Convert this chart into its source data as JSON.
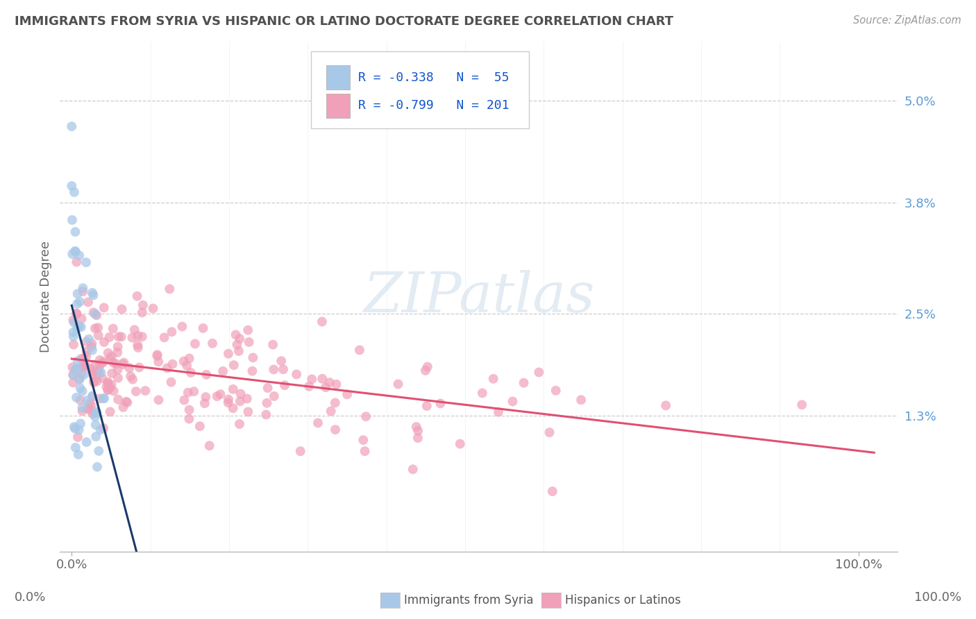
{
  "title": "IMMIGRANTS FROM SYRIA VS HISPANIC OR LATINO DOCTORATE DEGREE CORRELATION CHART",
  "source": "Source: ZipAtlas.com",
  "ylabel": "Doctorate Degree",
  "R1": -0.338,
  "N1": 55,
  "R2": -0.799,
  "N2": 201,
  "color_blue": "#A8C8E8",
  "color_blue_edge": "#A8C8E8",
  "color_pink": "#F0A0B8",
  "color_pink_edge": "#F0A0B8",
  "color_line_blue": "#1A3A6A",
  "color_line_pink": "#E05070",
  "watermark_color": "#C8D8E8",
  "background_color": "#FFFFFF",
  "grid_color": "#CCCCCC",
  "title_color": "#505050",
  "axis_label_color": "#666666",
  "right_axis_color": "#5B9BD5",
  "legend_R_color": "#1155CC",
  "legend_N_color": "#1155CC",
  "xlim": [
    0.0,
    1.0
  ],
  "ylim": [
    0.0,
    0.054
  ],
  "yticks": [
    0.013,
    0.025,
    0.038,
    0.05
  ],
  "ytick_labels": [
    "1.3%",
    "2.5%",
    "3.8%",
    "5.0%"
  ]
}
